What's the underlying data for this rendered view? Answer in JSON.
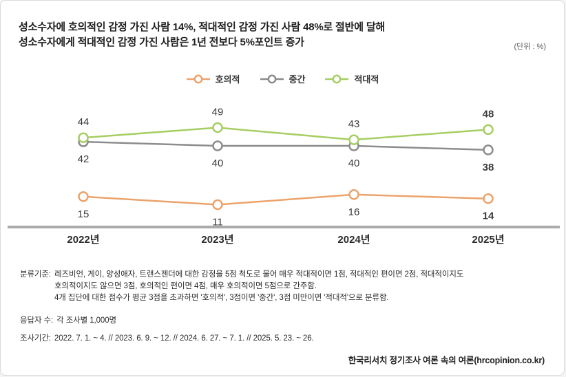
{
  "header": {
    "title_line1": "성소수자에 호의적인 감정 가진 사람 14%, 적대적인 감정 가진 사람 48%로 절반에 달해",
    "title_line2": "성소수자에게 적대적인 감정 가진 사람은 1년 전보다 5%포인트 증가",
    "unit_note": "(단위 : %)"
  },
  "chart_data": {
    "type": "line",
    "title": "성소수자에 호의적인 감정 가진 사람 14%, 적대적인 감정 가진 사람 48%로 절반에 달해 / 성소수자에게 적대적인 감정 가진 사람은 1년 전보다 5%포인트 증가",
    "unit": "%",
    "categories": [
      "2022년",
      "2023년",
      "2024년",
      "2025년"
    ],
    "series": [
      {
        "key": "favorable",
        "name": "호의적",
        "color": "#ECA36B",
        "values": [
          15,
          11,
          16,
          14
        ],
        "label_position": "below"
      },
      {
        "key": "neutral",
        "name": "중간",
        "color": "#8C8C8C",
        "values": [
          42,
          40,
          40,
          38
        ],
        "label_position": "below"
      },
      {
        "key": "hostile",
        "name": "적대적",
        "color": "#A6CE63",
        "values": [
          44,
          49,
          43,
          48
        ],
        "label_position": "above"
      }
    ],
    "ylim": [
      0,
      64
    ],
    "grid": false,
    "legend_position": "top-center",
    "emphasized_category_index": 3,
    "data_labels": true
  },
  "footnotes": [
    {
      "label": "분류기준:",
      "lines": [
        "레즈비언, 게이, 양성애자, 트랜스젠더에 대한 감정을 5점 척도로 물어 매우 적대적이면 1점, 적대적인 편이면 2점, 적대적이지도",
        "호의적이지도 않으면 3점, 호의적인 편이면 4점, 매우 호의적이면 5점으로 간주함.",
        "4개 집단에 대한 점수가 평균 3점을 초과하면 '호의적', 3점이면 '중간', 3점 미만이면 '적대적'으로 분류함."
      ]
    },
    {
      "label": "응답자 수:",
      "lines": [
        "각 조사별 1,000명"
      ]
    },
    {
      "label": "조사기간:",
      "lines": [
        "2022. 7. 1. ~ 4.  //  2023. 6. 9. ~ 12. //  2024. 6. 27. ~ 7. 1. //  2025. 5. 23. ~ 26."
      ]
    }
  ],
  "source": "한국리서치 정기조사 여론 속의 여론(hrcopinion.co.kr)"
}
